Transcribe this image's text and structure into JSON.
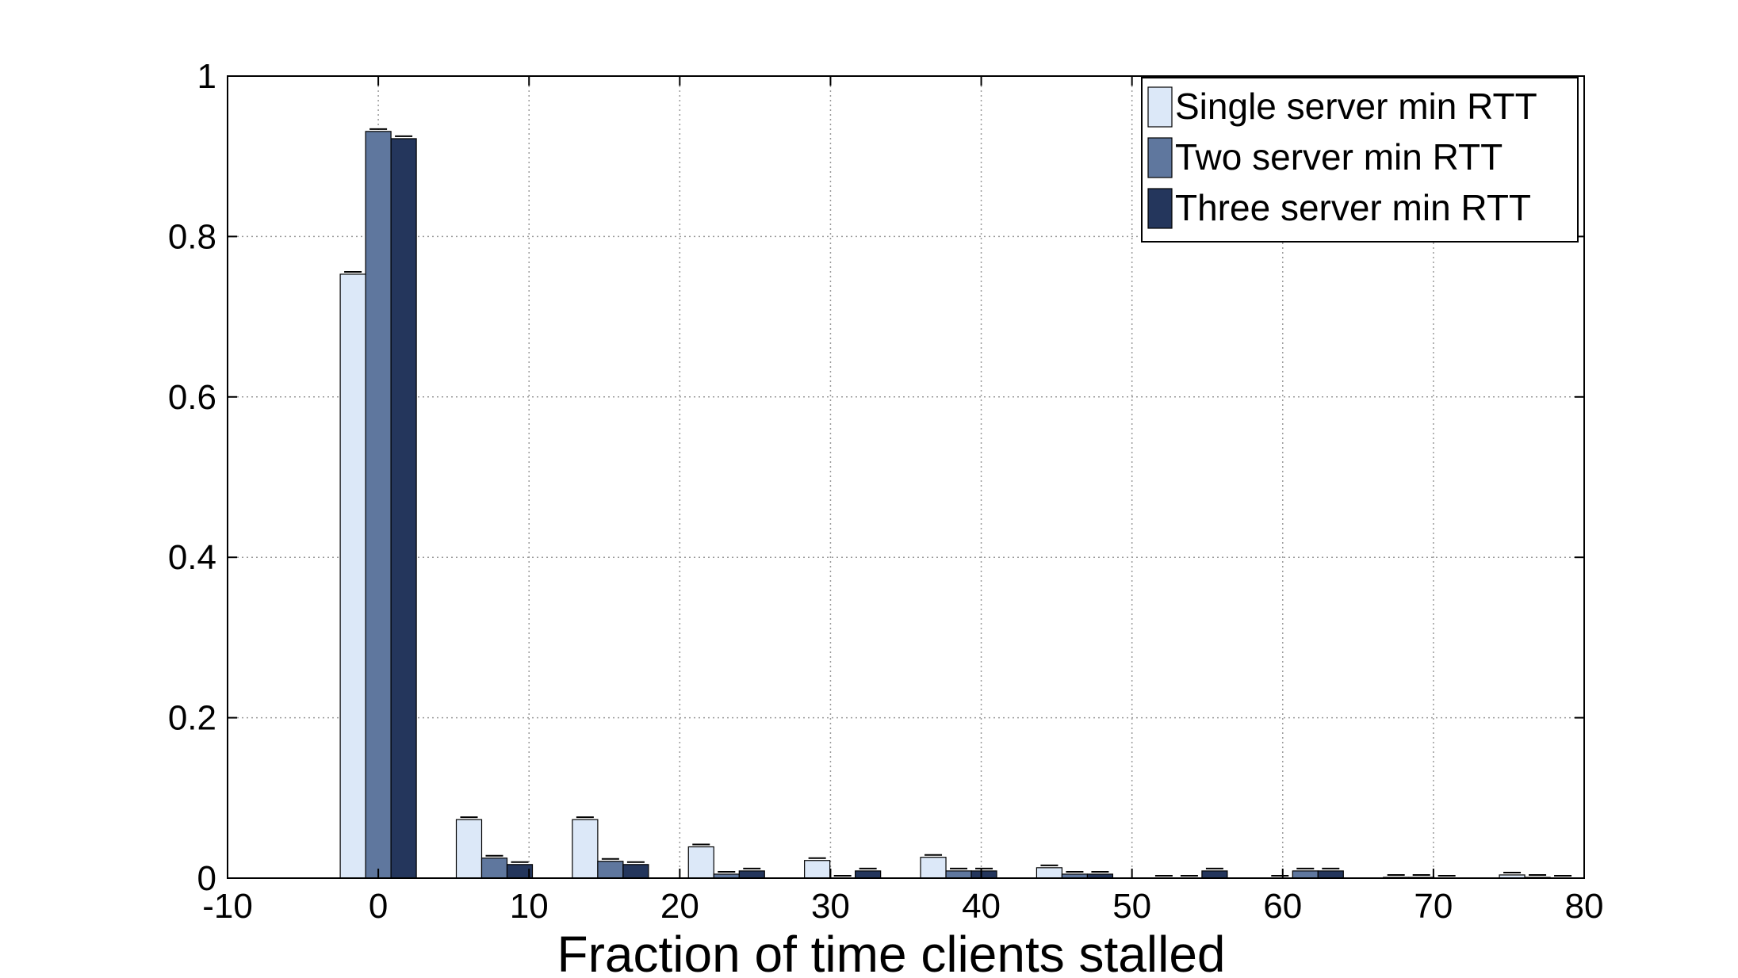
{
  "chart_data": {
    "type": "bar",
    "title": "",
    "xlabel": "Fraction of time clients stalled",
    "ylabel": "",
    "xlim": [
      -10,
      80
    ],
    "ylim": [
      0,
      1
    ],
    "xticks": [
      -10,
      0,
      10,
      20,
      30,
      40,
      50,
      60,
      70,
      80
    ],
    "yticks": [
      0,
      0.2,
      0.4,
      0.6,
      0.8,
      1
    ],
    "xtick_labels": [
      "-10",
      "0",
      "10",
      "20",
      "30",
      "40",
      "50",
      "60",
      "70",
      "80"
    ],
    "ytick_labels": [
      "0",
      "0.2",
      "0.4",
      "0.6",
      "0.8",
      "1"
    ],
    "grid": true,
    "grid_style": "dotted",
    "error_bars": true,
    "legend_position": "top-right",
    "categories": [
      0,
      7.7,
      15.4,
      23.1,
      30.8,
      38.5,
      46.2,
      53.8,
      61.5,
      69.2,
      76.9
    ],
    "series": [
      {
        "name": "Single server min RTT",
        "color": "#dce8f8",
        "values": [
          0.753,
          0.073,
          0.073,
          0.039,
          0.022,
          0.026,
          0.013,
          0.0,
          0.0,
          0.001,
          0.004
        ]
      },
      {
        "name": "Two server min RTT",
        "color": "#5f779e",
        "values": [
          0.931,
          0.025,
          0.021,
          0.005,
          0.0,
          0.009,
          0.005,
          0.0,
          0.009,
          0.001,
          0.001
        ]
      },
      {
        "name": "Three server min RTT",
        "color": "#24365c",
        "values": [
          0.922,
          0.017,
          0.017,
          0.009,
          0.009,
          0.009,
          0.005,
          0.009,
          0.009,
          0.0,
          0.0
        ]
      }
    ]
  }
}
